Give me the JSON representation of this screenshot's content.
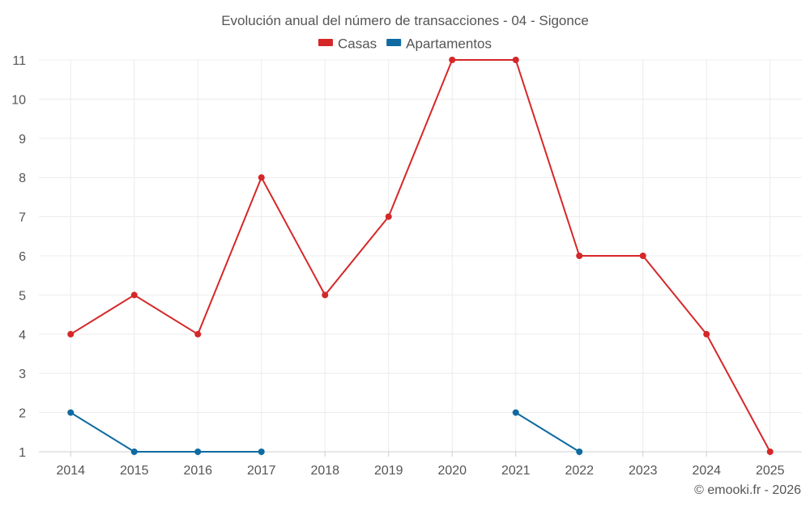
{
  "chart_data": {
    "type": "line",
    "title": "Evolución anual del número de transacciones - 04 - Sigonce",
    "xlabel": "",
    "ylabel": "",
    "categories": [
      "2014",
      "2015",
      "2016",
      "2017",
      "2018",
      "2019",
      "2020",
      "2021",
      "2022",
      "2023",
      "2024",
      "2025"
    ],
    "ylim": [
      1,
      11
    ],
    "yticks": [
      1,
      2,
      3,
      4,
      5,
      6,
      7,
      8,
      9,
      10,
      11
    ],
    "grid": true,
    "legend_position": "top-center",
    "series": [
      {
        "name": "Casas",
        "color": "#d62728",
        "values": [
          4,
          5,
          4,
          8,
          5,
          7,
          11,
          11,
          6,
          6,
          4,
          1
        ]
      },
      {
        "name": "Apartamentos",
        "color": "#0e6aa0",
        "values": [
          2,
          1,
          1,
          1,
          null,
          null,
          null,
          2,
          1,
          null,
          null,
          null
        ]
      }
    ],
    "credit": "© emooki.fr - 2026"
  }
}
